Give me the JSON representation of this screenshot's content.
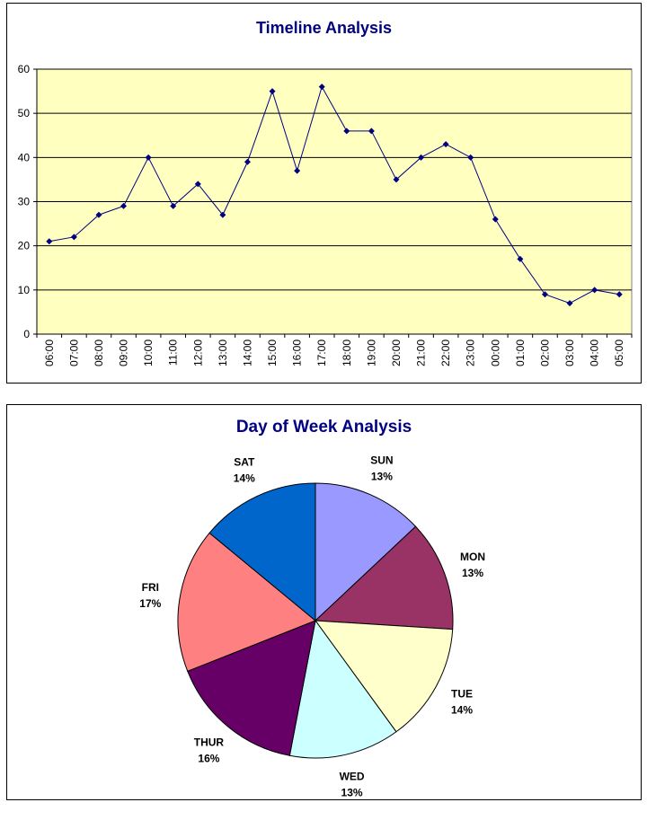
{
  "chart_data": [
    {
      "type": "line",
      "title": "Timeline Analysis",
      "xlabel": "",
      "ylabel": "",
      "categories": [
        "06:00",
        "07:00",
        "08:00",
        "09:00",
        "10:00",
        "11:00",
        "12:00",
        "13:00",
        "14:00",
        "15:00",
        "16:00",
        "17:00",
        "18:00",
        "19:00",
        "20:00",
        "21:00",
        "22:00",
        "23:00",
        "00:00",
        "01:00",
        "02:00",
        "03:00",
        "04:00",
        "05:00"
      ],
      "values": [
        21,
        22,
        27,
        29,
        40,
        29,
        34,
        27,
        39,
        55,
        37,
        56,
        46,
        46,
        35,
        40,
        43,
        40,
        26,
        17,
        9,
        7,
        10,
        9
      ],
      "ylim": [
        0,
        60
      ],
      "yticks": [
        0,
        10,
        20,
        30,
        40,
        50,
        60
      ],
      "grid": true,
      "legend": "none",
      "colors": {
        "line": "#000080",
        "plot_bg": "#ffffc0",
        "grid": "#000000"
      }
    },
    {
      "type": "pie",
      "title": "Day of Week Analysis",
      "slices": [
        {
          "label": "SUN",
          "percent_label": "13%",
          "value": 13,
          "color": "#9999ff"
        },
        {
          "label": "MON",
          "percent_label": "13%",
          "value": 13,
          "color": "#993366"
        },
        {
          "label": "TUE",
          "percent_label": "14%",
          "value": 14,
          "color": "#ffffcc"
        },
        {
          "label": "WED",
          "percent_label": "13%",
          "value": 13,
          "color": "#ccffff"
        },
        {
          "label": "THUR",
          "percent_label": "16%",
          "value": 16,
          "color": "#660066"
        },
        {
          "label": "FRI",
          "percent_label": "17%",
          "value": 17,
          "color": "#ff8080"
        },
        {
          "label": "SAT",
          "percent_label": "14%",
          "value": 14,
          "color": "#0066cc"
        }
      ],
      "legend": "none"
    }
  ]
}
